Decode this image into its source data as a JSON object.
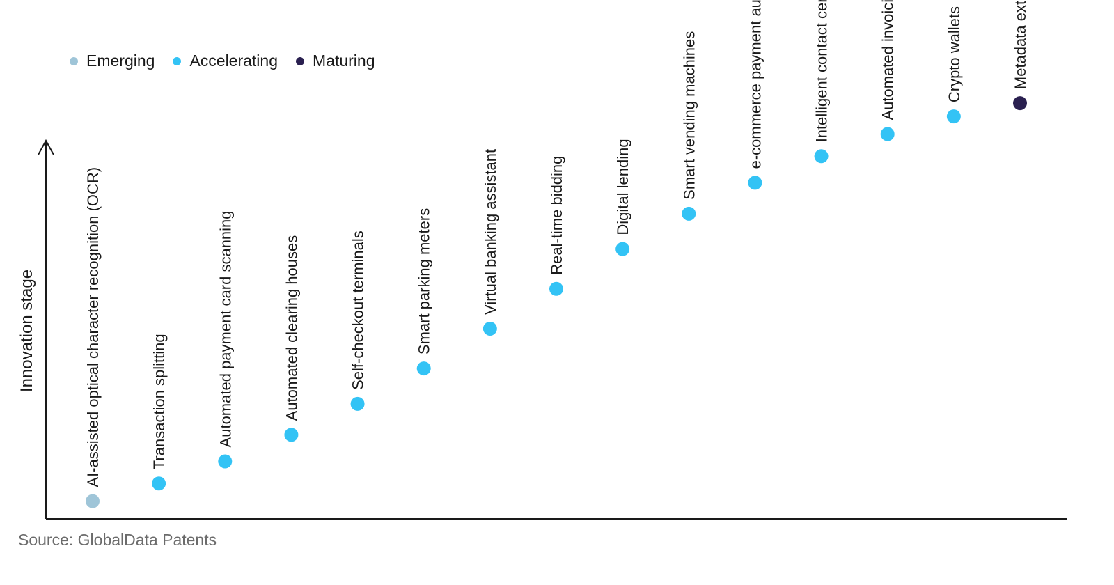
{
  "chart_data": {
    "type": "scatter",
    "ylabel": "Innovation stage",
    "legend": [
      {
        "name": "Emerging",
        "color": "#9fc5d8"
      },
      {
        "name": "Accelerating",
        "color": "#33c3f5"
      },
      {
        "name": "Maturing",
        "color": "#2a2050"
      }
    ],
    "points": [
      {
        "label": "AI-assisted optical character recognition (OCR)",
        "stage": "Emerging",
        "value": 4
      },
      {
        "label": "Transaction splitting",
        "stage": "Accelerating",
        "value": 8
      },
      {
        "label": "Automated payment card scanning",
        "stage": "Accelerating",
        "value": 13
      },
      {
        "label": "Automated clearing houses",
        "stage": "Accelerating",
        "value": 19
      },
      {
        "label": "Self-checkout terminals",
        "stage": "Accelerating",
        "value": 26
      },
      {
        "label": "Smart parking meters",
        "stage": "Accelerating",
        "value": 34
      },
      {
        "label": "Virtual banking assistant",
        "stage": "Accelerating",
        "value": 43
      },
      {
        "label": "Real-time bidding",
        "stage": "Accelerating",
        "value": 52
      },
      {
        "label": "Digital lending",
        "stage": "Accelerating",
        "value": 61
      },
      {
        "label": "Smart vending machines",
        "stage": "Accelerating",
        "value": 69
      },
      {
        "label": "e-commerce payment automation",
        "stage": "Accelerating",
        "value": 76
      },
      {
        "label": "Intelligent contact centers",
        "stage": "Accelerating",
        "value": 82
      },
      {
        "label": "Automated invoicing",
        "stage": "Accelerating",
        "value": 87
      },
      {
        "label": "Crypto wallets",
        "stage": "Accelerating",
        "value": 91
      },
      {
        "label": "Metadata extraction for payments",
        "stage": "Maturing",
        "value": 94
      }
    ],
    "ylim": [
      0,
      100
    ]
  },
  "source": "Source: GlobalData Patents"
}
